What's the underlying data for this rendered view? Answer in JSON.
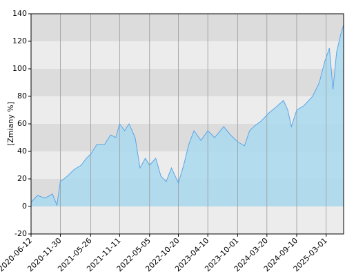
{
  "chart_data": {
    "type": "area",
    "y_label": "[Zmiany %]",
    "x": [
      "2020-06-12",
      "2020-07-20",
      "2020-09-01",
      "2020-10-15",
      "2020-11-10",
      "2020-11-30",
      "2021-01-10",
      "2021-02-20",
      "2021-04-01",
      "2021-05-01",
      "2021-05-26",
      "2021-07-01",
      "2021-08-15",
      "2021-09-20",
      "2021-10-20",
      "2021-11-11",
      "2021-12-10",
      "2022-01-05",
      "2022-02-10",
      "2022-03-10",
      "2022-04-10",
      "2022-05-05",
      "2022-06-10",
      "2022-07-10",
      "2022-08-10",
      "2022-09-10",
      "2022-10-20",
      "2022-11-20",
      "2022-12-20",
      "2023-01-19",
      "2023-03-01",
      "2023-04-10",
      "2023-05-20",
      "2023-07-12",
      "2023-08-20",
      "2023-10-01",
      "2023-11-10",
      "2023-12-10",
      "2024-01-03",
      "2024-02-15",
      "2024-04-01",
      "2024-05-10",
      "2024-06-25",
      "2024-07-20",
      "2024-08-10",
      "2024-09-10",
      "2024-10-20",
      "2024-12-12",
      "2025-01-20",
      "2025-02-20",
      "2025-03-20",
      "2025-04-10",
      "2025-05-01",
      "2025-05-25",
      "2025-06-11"
    ],
    "series": [
      {
        "color": "#5aa5e8",
        "fill": "#a9d9ee",
        "values": [
          3,
          8,
          6,
          9,
          1,
          18,
          22,
          27,
          30,
          35,
          38,
          45,
          45,
          52,
          50,
          60,
          55,
          60,
          50,
          28,
          35,
          30,
          35,
          22,
          18,
          28,
          17,
          30,
          45,
          55,
          48,
          55,
          50,
          58,
          52,
          47,
          44,
          55,
          58,
          62,
          68,
          72,
          77,
          70,
          58,
          70,
          73,
          80,
          90,
          105,
          115,
          85,
          112,
          125,
          132
        ]
      }
    ],
    "xlim": [
      "2020-06-12",
      "2025-06-11"
    ],
    "xticks": [
      "2020-06-12",
      "2020-11-30",
      "2021-05-26",
      "2021-11-11",
      "2022-05-05",
      "2022-10-20",
      "2023-04-10",
      "2023-10-01",
      "2024-03-20",
      "2024-09-10",
      "2025-03-01"
    ],
    "ylim": [
      -20,
      140
    ],
    "yticks": [
      -20,
      0,
      20,
      40,
      60,
      80,
      100,
      120,
      140
    ],
    "grid": true
  }
}
